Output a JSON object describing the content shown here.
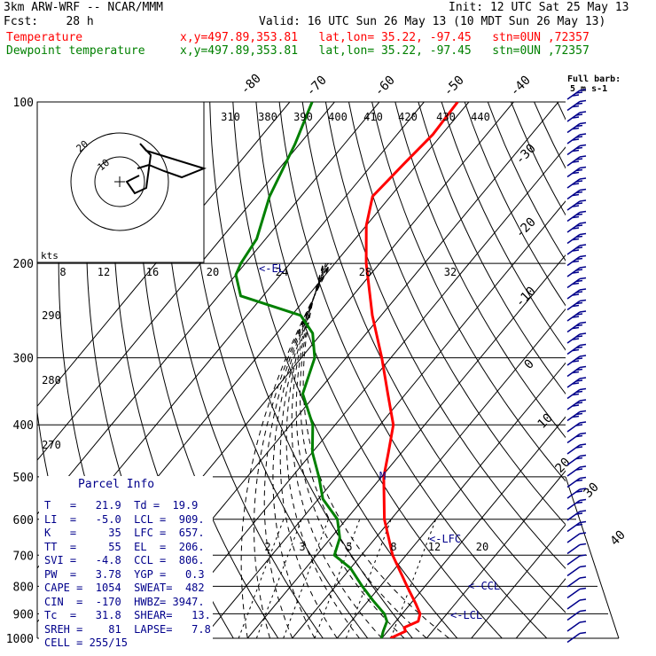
{
  "header": {
    "model": "3km ARW-WRF -- NCAR/MMM",
    "init": "Init: 12 UTC Sat 25 May 13",
    "fcst": "Fcst:    28 h",
    "valid": "Valid: 16 UTC Sun 26 May 13 (10 MDT Sun 26 May 13)",
    "series": [
      {
        "name": "Temperature",
        "info": "x,y=497.89,353.81   lat,lon= 35.22, -97.45   stn=0UN ,72357",
        "color": "#ff0000"
      },
      {
        "name": "Dewpoint temperature",
        "info": "x,y=497.89,353.81   lat,lon= 35.22, -97.45   stn=0UN ,72357",
        "color": "#008000"
      }
    ],
    "barb_legend": [
      "Full barb:",
      "5 m s-1"
    ]
  },
  "chart_data": {
    "type": "line",
    "diagram": "skew-T log-p",
    "pressure_ticks": [
      100,
      200,
      300,
      400,
      500,
      600,
      700,
      800,
      900,
      1000
    ],
    "isotherm_labels": [
      "-80",
      "-70",
      "-60",
      "-50",
      "-40",
      "-30",
      "-20",
      "-10",
      "0",
      "10",
      "20",
      "30",
      "40"
    ],
    "theta_labels": [
      "310",
      "380",
      "390",
      "400",
      "410",
      "420",
      "430",
      "440"
    ],
    "dry_adiabat_labels": [
      "290",
      "280",
      "270"
    ],
    "mixing_ratio_labels": [
      "2",
      "3",
      "5",
      "8",
      "12",
      "20"
    ],
    "annotations": [
      "<-EL",
      "<-LFC",
      "<-CCL",
      "<-LCL",
      "M"
    ],
    "series": [
      {
        "name": "Temperature",
        "color": "#ff0000",
        "points": [
          [
            1000,
            21.9
          ],
          [
            970,
            24.0
          ],
          [
            955,
            23.0
          ],
          [
            930,
            25.0
          ],
          [
            900,
            24.0
          ],
          [
            860,
            21.0
          ],
          [
            800,
            16.0
          ],
          [
            700,
            7.0
          ],
          [
            600,
            -1.5
          ],
          [
            500,
            -9.5
          ],
          [
            450,
            -13.0
          ],
          [
            400,
            -17.0
          ],
          [
            350,
            -24.0
          ],
          [
            300,
            -32.0
          ],
          [
            250,
            -42.0
          ],
          [
            200,
            -53.0
          ],
          [
            170,
            -60.0
          ],
          [
            150,
            -64.0
          ],
          [
            130,
            -63.0
          ],
          [
            115,
            -62.0
          ],
          [
            100,
            -62.5
          ]
        ]
      },
      {
        "name": "Dewpoint temperature",
        "color": "#008000",
        "points": [
          [
            1000,
            19.9
          ],
          [
            970,
            19.0
          ],
          [
            930,
            18.0
          ],
          [
            900,
            16.0
          ],
          [
            850,
            11.0
          ],
          [
            800,
            6.0
          ],
          [
            740,
            0.0
          ],
          [
            700,
            -6.0
          ],
          [
            650,
            -8.0
          ],
          [
            600,
            -12.0
          ],
          [
            550,
            -19.0
          ],
          [
            500,
            -24.0
          ],
          [
            450,
            -30.0
          ],
          [
            400,
            -35.0
          ],
          [
            350,
            -43.0
          ],
          [
            300,
            -47.0
          ],
          [
            270,
            -52.0
          ],
          [
            250,
            -58.0
          ],
          [
            230,
            -75.0
          ],
          [
            210,
            -80.0
          ],
          [
            200,
            -81.0
          ],
          [
            180,
            -82.0
          ],
          [
            150,
            -87.0
          ],
          [
            120,
            -91.0
          ],
          [
            100,
            -95.0
          ]
        ]
      }
    ],
    "hodograph": {
      "ring_labels": [
        "10",
        "20"
      ],
      "unit_label": "kts",
      "axis_labels": [
        "8",
        "12",
        "16",
        "20",
        "24",
        "28",
        "32"
      ]
    }
  },
  "parcel_info": {
    "title": "Parcel Info",
    "rows": [
      "T   =   21.9  Td =  19.9",
      "LI  =   -5.0  LCL =  909.",
      "K   =     35  LFC =  657.",
      "TT  =     55  EL  =  206.",
      "SVI =   -4.8  CCL =  806.",
      "PW  =   3.78  YGP =   0.3",
      "CAPE =  1054  SWEAT=  482",
      "CIN  =  -170  HWBZ= 3947.",
      "Tc  =   31.8  SHEAR=   13.",
      "SREH =    81  LAPSE=   7.8",
      "CELL = 255/15"
    ]
  }
}
